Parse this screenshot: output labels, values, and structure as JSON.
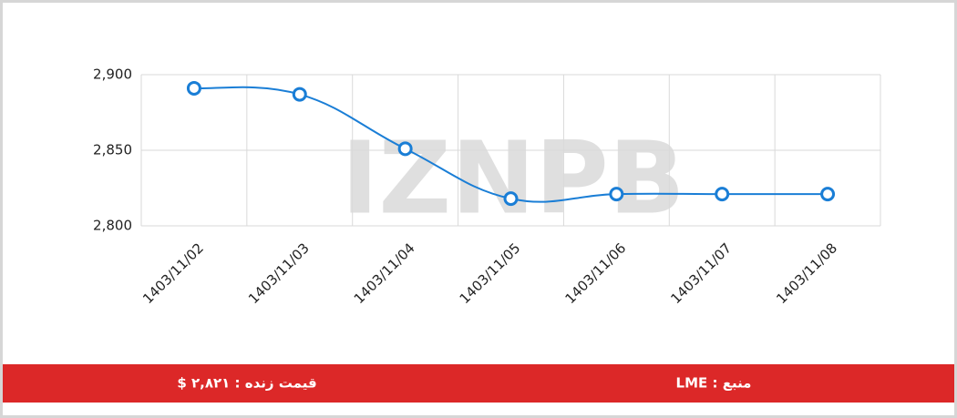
{
  "chart_data": {
    "type": "line",
    "categories": [
      "1403/11/02",
      "1403/11/03",
      "1403/11/04",
      "1403/11/05",
      "1403/11/06",
      "1403/11/07",
      "1403/11/08"
    ],
    "values": [
      2891,
      2887,
      2851,
      2818,
      2821,
      2821,
      2821
    ],
    "color": "#1a7ed6",
    "ylim": [
      2800,
      2900
    ],
    "yticks": [
      {
        "value": 2800,
        "label": "2,800"
      },
      {
        "value": 2850,
        "label": "2,850"
      },
      {
        "value": 2900,
        "label": "2,900"
      }
    ],
    "grid": true
  },
  "watermark": "IZNPB",
  "footer": {
    "price": "قیمت زنده : ۲,۸۲۱ $",
    "source": "منبع : LME"
  }
}
